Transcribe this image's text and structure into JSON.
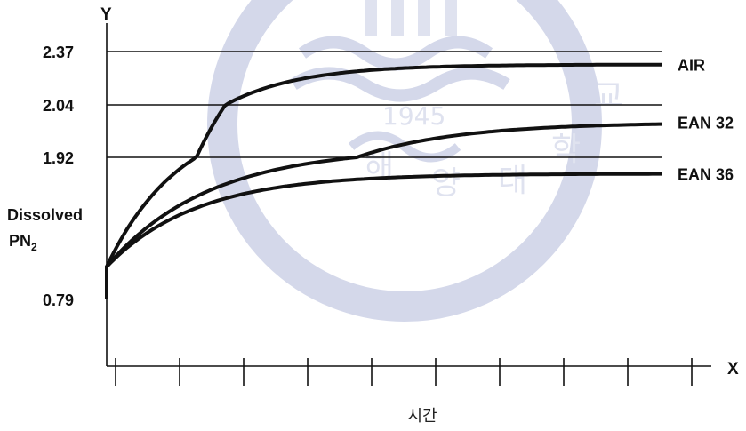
{
  "chart_data": {
    "type": "line",
    "title": "",
    "xlabel": "시간",
    "x_axis_letter": "X",
    "ylabel_lines": [
      "Dissolved",
      "PN",
      "2"
    ],
    "y_axis_letter": "Y",
    "y_ticks": [
      {
        "value": 0.79,
        "label": "0.79"
      },
      {
        "value": 1.92,
        "label": "1.92"
      },
      {
        "value": 2.04,
        "label": "2.04"
      },
      {
        "value": 2.37,
        "label": "2.37"
      }
    ],
    "x_tick_count": 10,
    "x_range": [
      0,
      10
    ],
    "reference_lines": [
      2.37,
      2.04,
      1.92
    ],
    "series": [
      {
        "name": "AIR",
        "start": 1.05,
        "plateau": 2.29,
        "rate": 0.75
      },
      {
        "name": "EAN 32",
        "start": 1.05,
        "plateau": 2.0,
        "rate": 0.55
      },
      {
        "name": "EAN 36",
        "start": 1.05,
        "plateau": 1.79,
        "rate": 0.62
      }
    ],
    "watermark_text": [
      "1945",
      "해",
      "양",
      "대",
      "학",
      "교"
    ]
  }
}
